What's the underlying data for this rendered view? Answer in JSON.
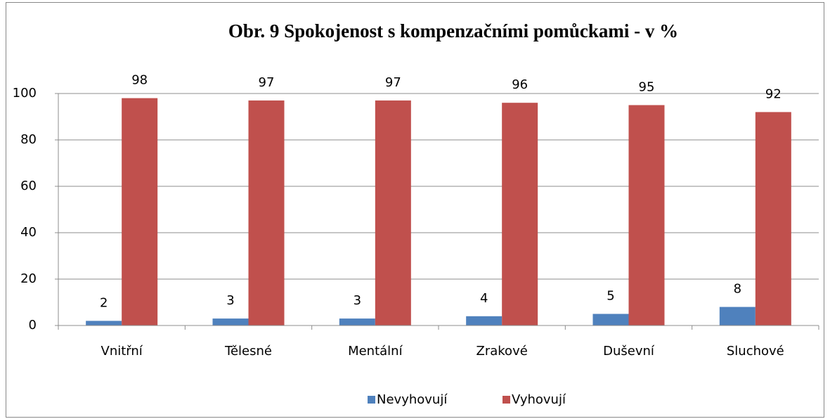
{
  "chart_data": {
    "type": "bar",
    "title": "Obr. 9 Spokojenost s kompenzačními pomůckami - v %",
    "categories": [
      "Vnitřní",
      "Tělesné",
      "Mentální",
      "Zrakové",
      "Duševní",
      "Sluchové"
    ],
    "series": [
      {
        "name": "Nevyhovují",
        "color": "#4f81bd",
        "values": [
          2,
          3,
          3,
          4,
          5,
          8
        ]
      },
      {
        "name": "Vyhovují",
        "color": "#c0504d",
        "values": [
          98,
          97,
          97,
          96,
          95,
          92
        ]
      }
    ],
    "ylim": [
      0,
      100
    ],
    "yticks": [
      0,
      20,
      40,
      60,
      80,
      100
    ],
    "grid": true,
    "legend": "bottom"
  }
}
